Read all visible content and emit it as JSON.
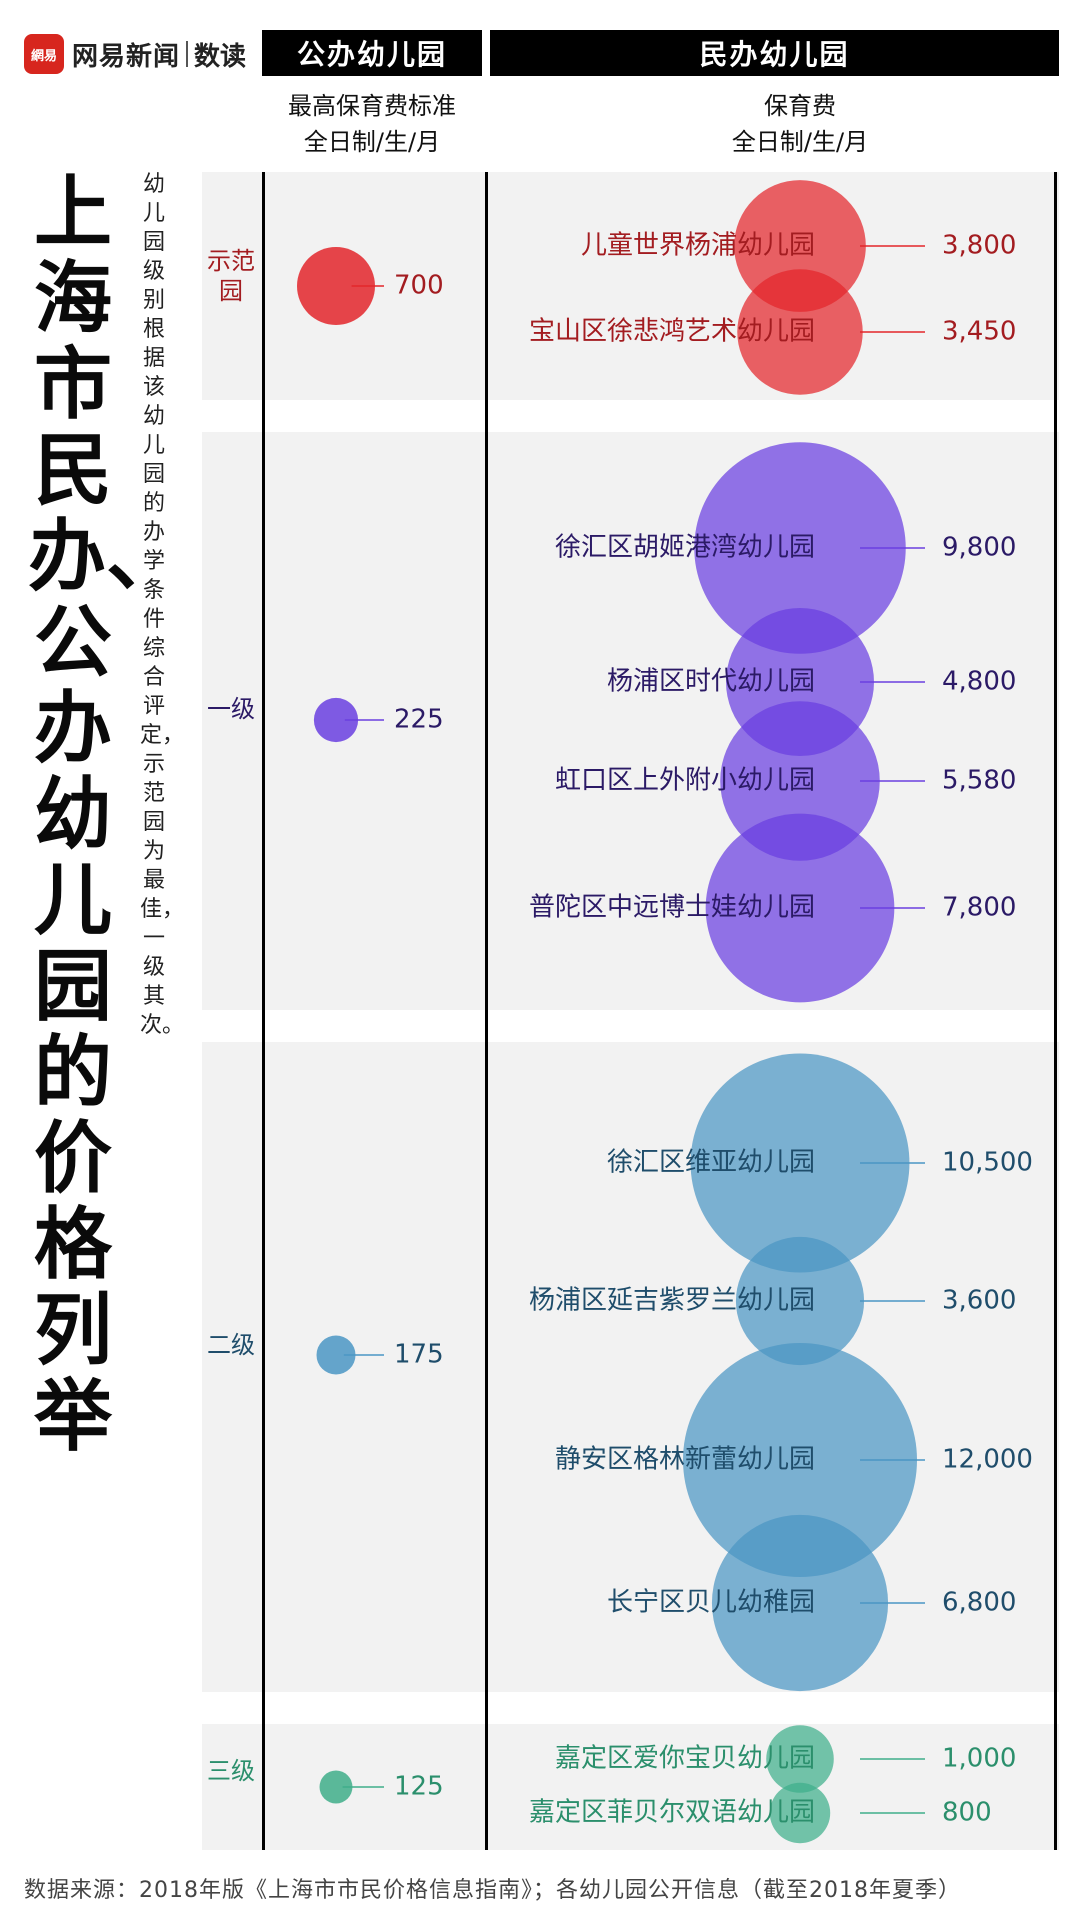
{
  "brand": {
    "badge_text": "網易",
    "name": "网易新闻",
    "sub": "数读",
    "accent": "#d7261e"
  },
  "headers": {
    "public": "公办幼儿园",
    "private": "民办幼儿园",
    "public_sub1": "最高保育费标准",
    "public_sub2": "全日制/生/月",
    "private_sub1": "保育费",
    "private_sub2": "全日制/生/月"
  },
  "title": "上海市民办、公办幼儿园的价格列举",
  "note": "幼儿园级别根据该幼儿园的办学条件综合评定，示范园为最佳，一级其次。",
  "tiers": [
    {
      "label": "示范园",
      "color": "#e3262b",
      "text_color": "#a31c20"
    },
    {
      "label": "一级",
      "color": "#6a3fe0",
      "text_color": "#2b1a66"
    },
    {
      "label": "二级",
      "color": "#4b96c4",
      "text_color": "#1f4d6b"
    },
    {
      "label": "三级",
      "color": "#3fae8a",
      "text_color": "#2b8f6c"
    }
  ],
  "chart_data": {
    "type": "bubble",
    "title": "上海市民办、公办幼儿园的价格列举",
    "unit": "元 全日制/生/月",
    "public_series": [
      {
        "tier": "示范园",
        "value": 700,
        "value_label": "700"
      },
      {
        "tier": "一级",
        "value": 225,
        "value_label": "225"
      },
      {
        "tier": "二级",
        "value": 175,
        "value_label": "175"
      },
      {
        "tier": "三级",
        "value": 125,
        "value_label": "125"
      }
    ],
    "private_series": [
      {
        "tier": "示范园",
        "name": "儿童世界杨浦幼儿园",
        "value": 3800,
        "value_label": "3,800"
      },
      {
        "tier": "示范园",
        "name": "宝山区徐悲鸿艺术幼儿园",
        "value": 3450,
        "value_label": "3,450"
      },
      {
        "tier": "一级",
        "name": "徐汇区胡姬港湾幼儿园",
        "value": 9800,
        "value_label": "9,800"
      },
      {
        "tier": "一级",
        "name": "杨浦区时代幼儿园",
        "value": 4800,
        "value_label": "4,800"
      },
      {
        "tier": "一级",
        "name": "虹口区上外附小幼儿园",
        "value": 5580,
        "value_label": "5,580"
      },
      {
        "tier": "一级",
        "name": "普陀区中远博士娃幼儿园",
        "value": 7800,
        "value_label": "7,800"
      },
      {
        "tier": "二级",
        "name": "徐汇区维亚幼儿园",
        "value": 10500,
        "value_label": "10,500"
      },
      {
        "tier": "二级",
        "name": "杨浦区延吉紫罗兰幼儿园",
        "value": 3600,
        "value_label": "3,600"
      },
      {
        "tier": "二级",
        "name": "静安区格林新蕾幼儿园",
        "value": 12000,
        "value_label": "12,000"
      },
      {
        "tier": "二级",
        "name": "长宁区贝儿幼稚园",
        "value": 6800,
        "value_label": "6,800"
      },
      {
        "tier": "三级",
        "name": "嘉定区爱你宝贝幼儿园",
        "value": 1000,
        "value_label": "1,000"
      },
      {
        "tier": "三级",
        "name": "嘉定区菲贝尔双语幼儿园",
        "value": 800,
        "value_label": "800"
      }
    ]
  },
  "source": "数据来源：2018年版《上海市市民价格信息指南》；各幼儿园公开信息（截至2018年夏季）"
}
